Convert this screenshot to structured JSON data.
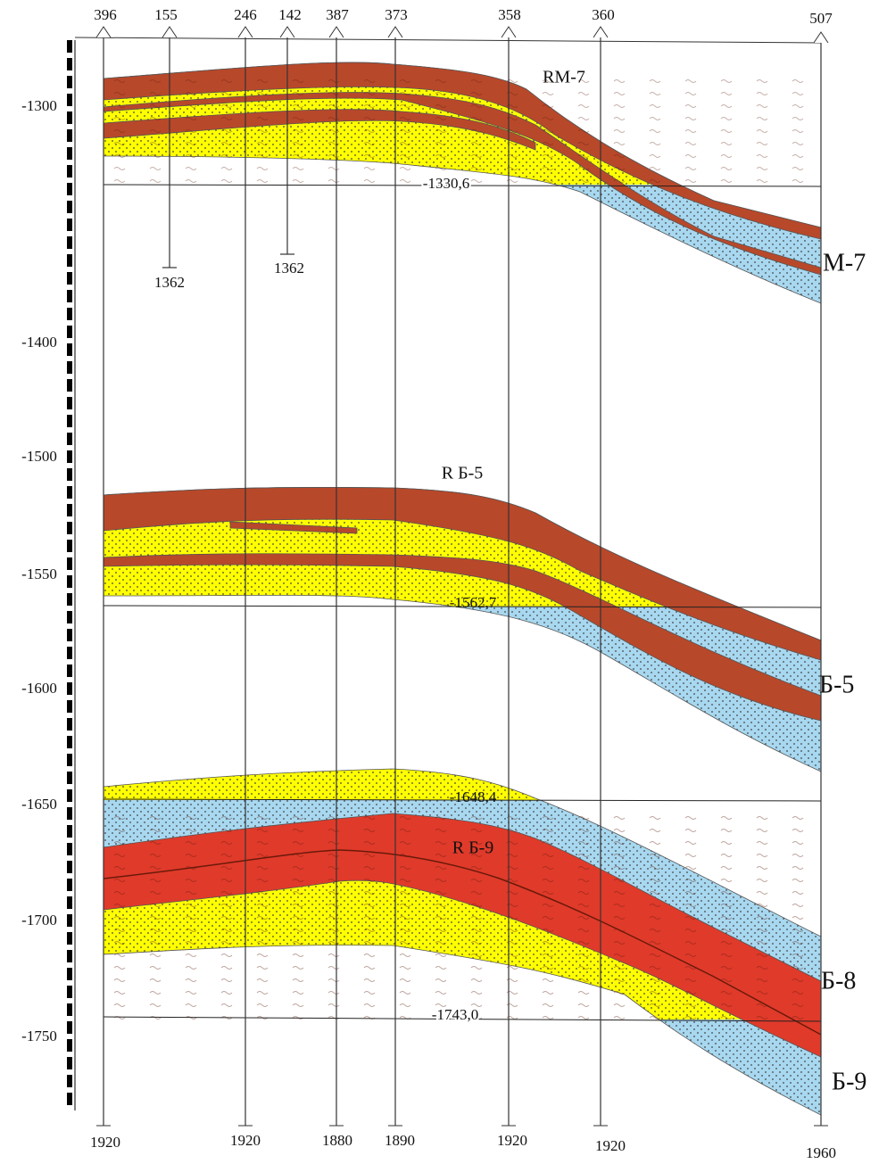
{
  "wells": [
    {
      "top": "396",
      "bottom": "1920"
    },
    {
      "top": "155",
      "bottom": "1362"
    },
    {
      "top": "246",
      "bottom": "1920"
    },
    {
      "top": "142",
      "bottom": "1362"
    },
    {
      "top": "387",
      "bottom": "1880"
    },
    {
      "top": "373",
      "bottom": "1890"
    },
    {
      "top": "358",
      "bottom": "1920"
    },
    {
      "top": "360",
      "bottom": "1920"
    },
    {
      "top": "507",
      "bottom": "1960"
    }
  ],
  "depth_labels": [
    "-1300",
    "-1400",
    "-1500",
    "-1550",
    "-1600",
    "-1650",
    "-1700",
    "-1750"
  ],
  "contact_labels": [
    "-1330,6",
    "-1562,7",
    "-1648,4",
    "-1743,0"
  ],
  "reservoir_labels": [
    "RM-7",
    "R Б-5",
    "R Б-9"
  ],
  "layer_labels": [
    "M-7",
    "Б-5",
    "Б-8",
    "Б-9"
  ]
}
